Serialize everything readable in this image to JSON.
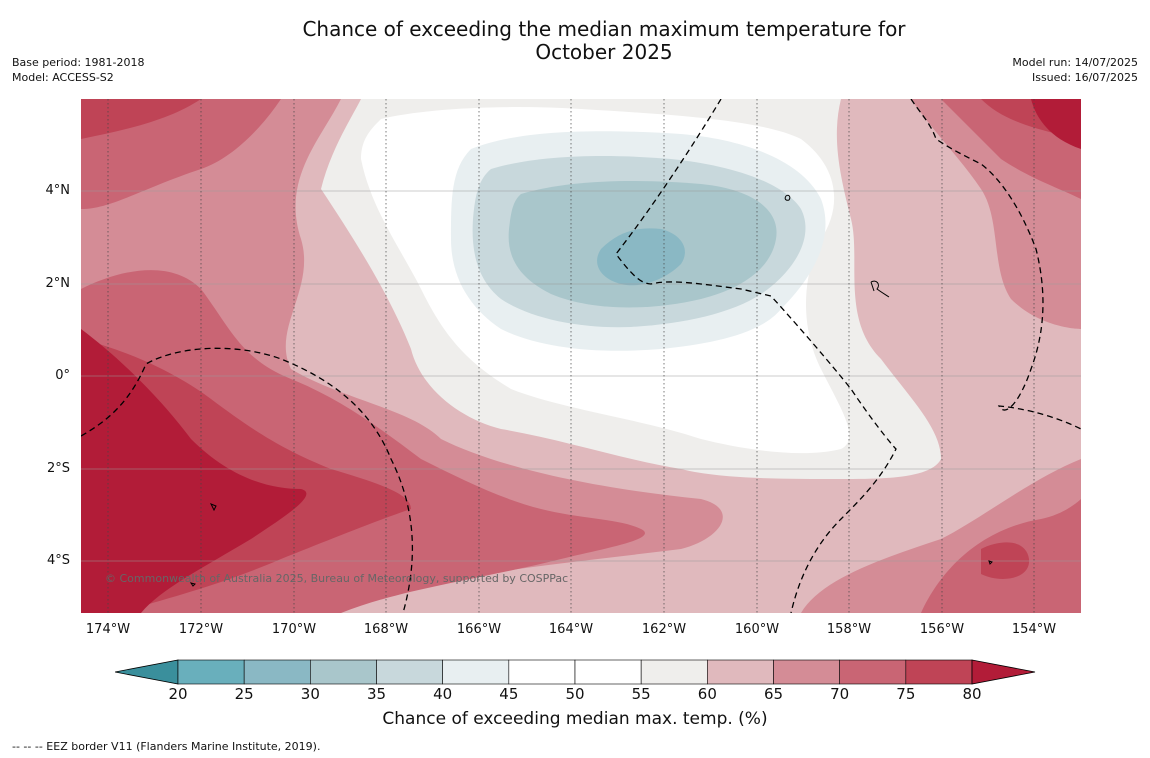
{
  "title_line1": "Chance of exceeding the median maximum temperature for",
  "title_line2": "October 2025",
  "meta_left": {
    "base_period": "Base period: 1981-2018",
    "model": "Model: ACCESS-S2"
  },
  "meta_right": {
    "model_run": "Model run: 14/07/2025",
    "issued": "Issued: 16/07/2025"
  },
  "map": {
    "lat_labels": [
      "4°N",
      "2°N",
      "0°",
      "2°S",
      "4°S"
    ],
    "lon_labels": [
      "174°W",
      "172°W",
      "170°W",
      "168°W",
      "166°W",
      "164°W",
      "162°W",
      "160°W",
      "158°W",
      "156°W",
      "154°W"
    ],
    "copyright": "© Commonwealth of Australia 2025, Bureau of Meteorology, supported by COSPPac"
  },
  "colorbar": {
    "ticks": [
      "20",
      "25",
      "30",
      "35",
      "40",
      "45",
      "50",
      "55",
      "60",
      "65",
      "70",
      "75",
      "80"
    ],
    "colors": [
      "#3a8f9c",
      "#69afbc",
      "#8ab8c4",
      "#a9c6cb",
      "#c8d8dc",
      "#e8eff1",
      "#ffffff",
      "#ffffff",
      "#efeeec",
      "#e0b9bd",
      "#d48c96",
      "#c96574",
      "#bf4456",
      "#b21c38"
    ],
    "label": "Chance of exceeding median max. temp. (%)"
  },
  "footer": "--  --  -- EEZ border V11 (Flanders Marine Institute, 2019)."
}
